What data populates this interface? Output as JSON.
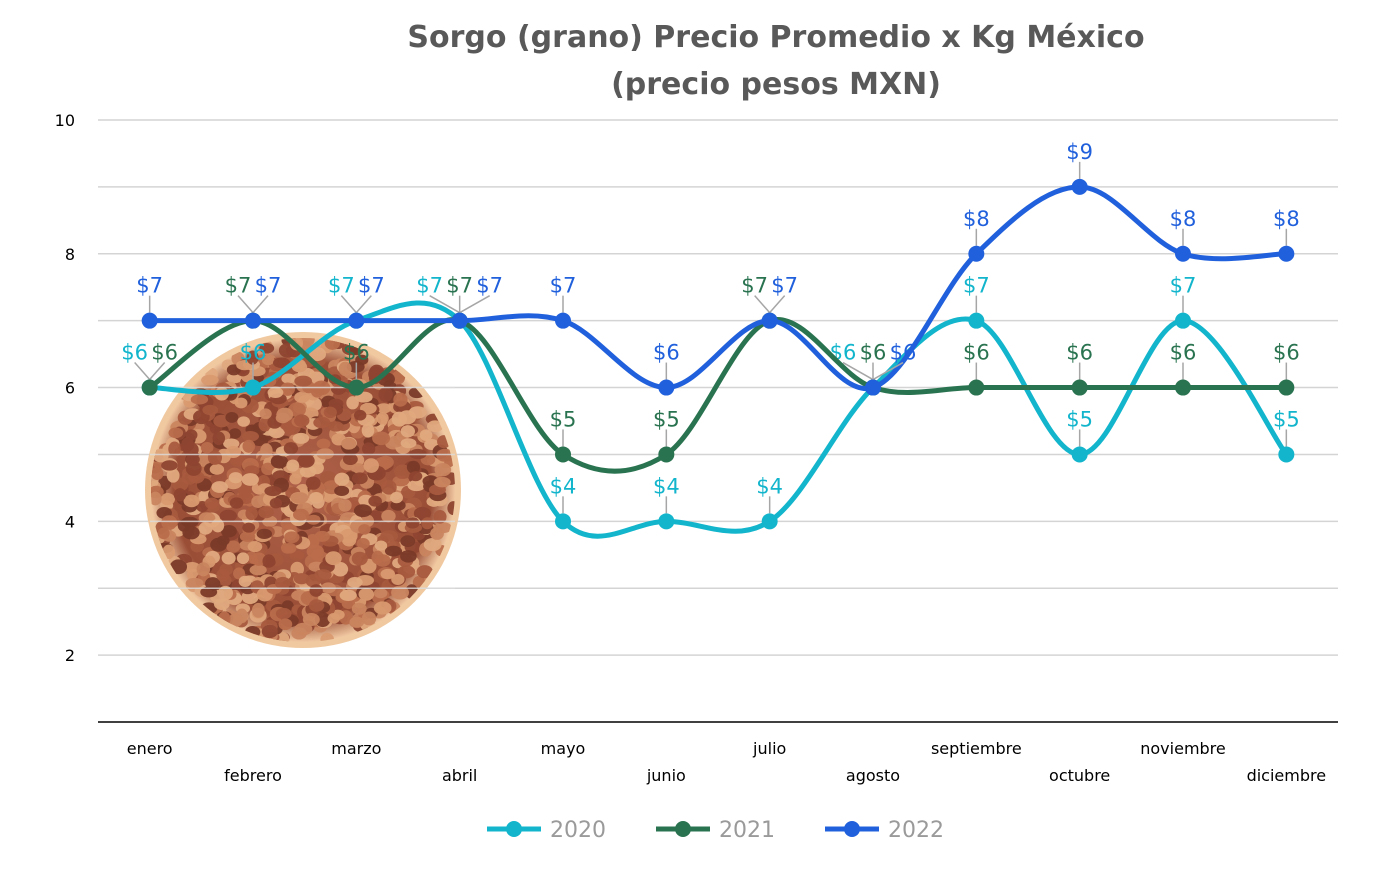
{
  "chart_data": {
    "type": "line",
    "title": [
      "Sorgo (grano) Precio Promedio x Kg México",
      "(precio pesos MXN)"
    ],
    "xlabel": "",
    "ylabel": "",
    "ylim": [
      1,
      10
    ],
    "yticks": [
      2,
      4,
      6,
      8,
      10
    ],
    "grid": true,
    "smooth": true,
    "legend_position": "bottom",
    "categories": [
      "enero",
      "febrero",
      "marzo",
      "abril",
      "mayo",
      "junio",
      "julio",
      "agosto",
      "septiembre",
      "octubre",
      "noviembre",
      "diciembre"
    ],
    "label_prefix": "$",
    "series": [
      {
        "name": "2020",
        "color": "#12b5cc",
        "values": [
          6,
          6,
          7,
          7,
          4,
          4,
          4,
          6,
          7,
          5,
          7,
          5
        ]
      },
      {
        "name": "2021",
        "color": "#2a7350",
        "values": [
          6,
          7,
          6,
          7,
          5,
          5,
          7,
          6,
          6,
          6,
          6,
          6
        ]
      },
      {
        "name": "2022",
        "color": "#2160dc",
        "values": [
          7,
          7,
          7,
          7,
          7,
          6,
          7,
          6,
          8,
          9,
          8,
          8
        ]
      }
    ]
  }
}
